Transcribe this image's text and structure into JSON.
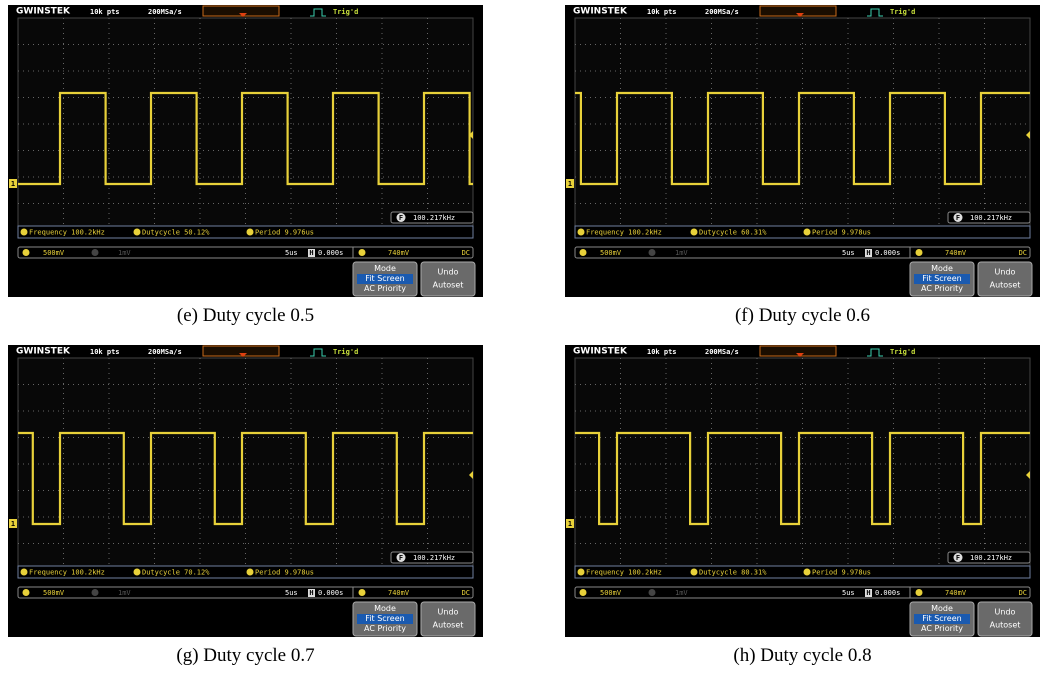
{
  "panels": [
    {
      "caption": "(e) Duty cycle 0.5",
      "brand": "GWINSTEK",
      "record_length": "10k pts",
      "sample_rate": "200MSa/s",
      "trigger_status": "Trig'd",
      "channel": "1",
      "readout_icon": "F",
      "readout": "100.217kHz",
      "measurements": [
        "Frequency 100.2kHz",
        "Dutycycle 50.12%",
        "Period 9.976us"
      ],
      "vertical_scale": "500mV",
      "ch2_scale": "1mV",
      "timebase": "5us",
      "position_icon": "H",
      "position": "0.000s",
      "trigger_level": "740mV",
      "coupling": "DC",
      "mode_button": [
        "Mode",
        "Fit Screen",
        "AC Priority"
      ],
      "undo_button": [
        "Undo",
        "Autoset"
      ]
    },
    {
      "caption": "(f) Duty cycle 0.6",
      "brand": "GWINSTEK",
      "record_length": "10k pts",
      "sample_rate": "200MSa/s",
      "trigger_status": "Trig'd",
      "channel": "1",
      "readout_icon": "F",
      "readout": "100.217kHz",
      "measurements": [
        "Frequency 100.2kHz",
        "Dutycycle 60.31%",
        "Period 9.978us"
      ],
      "vertical_scale": "500mV",
      "ch2_scale": "1mV",
      "timebase": "5us",
      "position_icon": "H",
      "position": "0.000s",
      "trigger_level": "740mV",
      "coupling": "DC",
      "mode_button": [
        "Mode",
        "Fit Screen",
        "AC Priority"
      ],
      "undo_button": [
        "Undo",
        "Autoset"
      ]
    },
    {
      "caption": "(g) Duty cycle 0.7",
      "brand": "GWINSTEK",
      "record_length": "10k pts",
      "sample_rate": "200MSa/s",
      "trigger_status": "Trig'd",
      "channel": "1",
      "readout_icon": "F",
      "readout": "100.217kHz",
      "measurements": [
        "Frequency 100.2kHz",
        "Dutycycle 70.12%",
        "Period 9.978us"
      ],
      "vertical_scale": "500mV",
      "ch2_scale": "1mV",
      "timebase": "5us",
      "position_icon": "H",
      "position": "0.000s",
      "trigger_level": "740mV",
      "coupling": "DC",
      "mode_button": [
        "Mode",
        "Fit Screen",
        "AC Priority"
      ],
      "undo_button": [
        "Undo",
        "Autoset"
      ]
    },
    {
      "caption": "(h) Duty cycle 0.8",
      "brand": "GWINSTEK",
      "record_length": "10k pts",
      "sample_rate": "200MSa/s",
      "trigger_status": "Trig'd",
      "channel": "1",
      "readout_icon": "F",
      "readout": "100.217kHz",
      "measurements": [
        "Frequency 100.2kHz",
        "Dutycycle 80.31%",
        "Period 9.978us"
      ],
      "vertical_scale": "500mV",
      "ch2_scale": "1mV",
      "timebase": "5us",
      "position_icon": "H",
      "position": "0.000s",
      "trigger_level": "740mV",
      "coupling": "DC",
      "mode_button": [
        "Mode",
        "Fit Screen",
        "AC Priority"
      ],
      "undo_button": [
        "Undo",
        "Autoset"
      ]
    }
  ]
}
